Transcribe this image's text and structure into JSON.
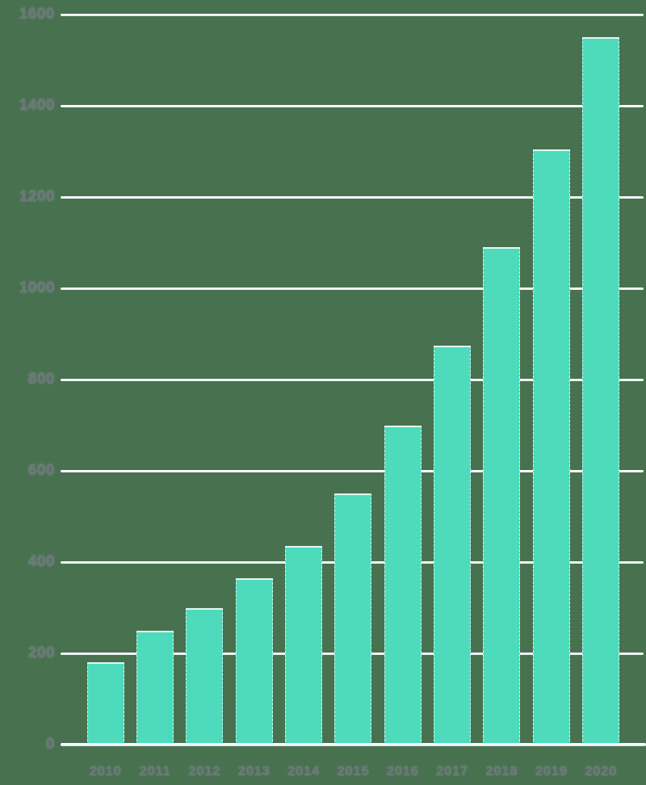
{
  "chart_data": {
    "type": "bar",
    "title": "",
    "xlabel": "",
    "ylabel": "",
    "categories": [
      "2010",
      "2011",
      "2012",
      "2013",
      "2014",
      "2015",
      "2016",
      "2017",
      "2018",
      "2019",
      "2020"
    ],
    "values": [
      180,
      250,
      300,
      365,
      435,
      550,
      700,
      875,
      1090,
      1305,
      1550
    ],
    "ylim": [
      0,
      1600
    ],
    "ytick_step": 200,
    "ytick_labels": [
      "0",
      "200",
      "400",
      "600",
      "800",
      "1000",
      "1200",
      "1400",
      "1600"
    ],
    "grid": "horizontal-only",
    "legend": "none",
    "colors": {
      "bar_fill": "#4DDBBC",
      "bar_outline": "#FFFFFF",
      "background": "#48714F",
      "gridline": "#F2F8F9",
      "tick_label": "#6D767E"
    }
  }
}
